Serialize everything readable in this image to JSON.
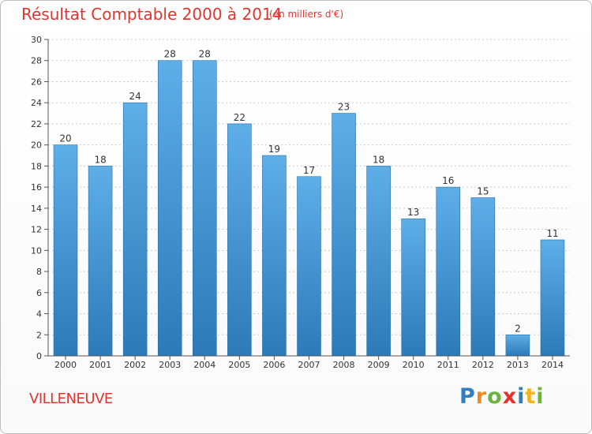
{
  "header": {
    "title": "Résultat Comptable 2000 à 2014",
    "subtitle": "(en milliers d'€)"
  },
  "footer": {
    "commune": "VILLENEUVE",
    "logo_text": "Proxiti",
    "logo_letters": [
      {
        "ch": "P",
        "color": "#2e7fc2"
      },
      {
        "ch": "r",
        "color": "#f18a1d"
      },
      {
        "ch": "o",
        "color": "#6cb33f"
      },
      {
        "ch": "x",
        "color": "#e2342f"
      },
      {
        "ch": "i",
        "color": "#2e7fc2"
      },
      {
        "ch": "t",
        "color": "#f1b41d"
      },
      {
        "ch": "i",
        "color": "#6cb33f"
      }
    ]
  },
  "colors": {
    "bar_top": "#5eaee8",
    "bar_bottom": "#2c7ab8",
    "axis": "#555555",
    "grid": "#cccccc",
    "text": "#333333"
  },
  "chart_data": {
    "type": "bar",
    "title": "Résultat Comptable 2000 à 2014",
    "subtitle": "(en milliers d'€)",
    "xlabel": "",
    "ylabel": "",
    "categories": [
      "2000",
      "2001",
      "2002",
      "2003",
      "2004",
      "2005",
      "2006",
      "2007",
      "2008",
      "2009",
      "2010",
      "2011",
      "2012",
      "2013",
      "2014"
    ],
    "values": [
      20,
      18,
      24,
      28,
      28,
      22,
      19,
      17,
      23,
      18,
      13,
      16,
      15,
      2,
      11
    ],
    "ylim": [
      0,
      30
    ],
    "yticks": [
      0,
      2,
      4,
      6,
      8,
      10,
      12,
      14,
      16,
      18,
      20,
      22,
      24,
      26,
      28,
      30
    ],
    "grid": true,
    "data_labels": true
  }
}
